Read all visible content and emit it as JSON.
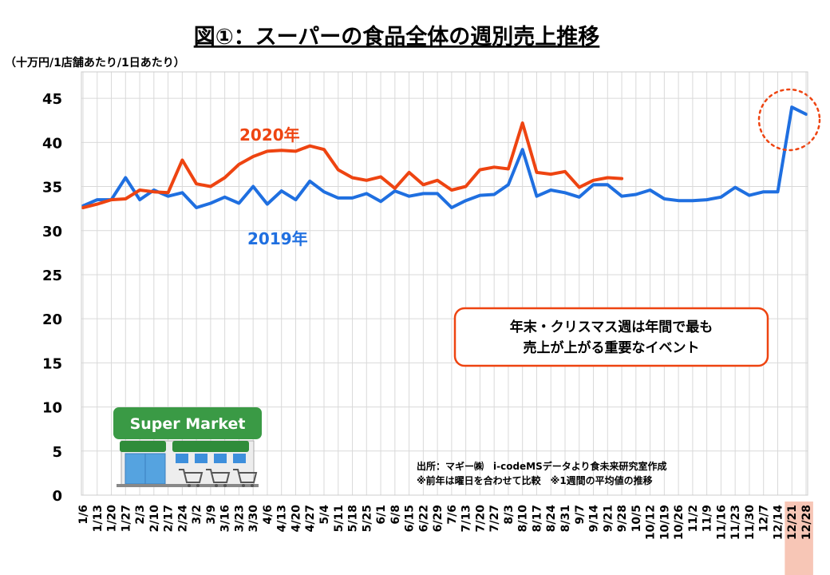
{
  "chart_data": {
    "type": "line",
    "title": "図①：スーパーの食品全体の週別売上推移",
    "ylabel": "（十万円/1店舗あたり/1日あたり）",
    "xlabel": "",
    "ylim": [
      0,
      48
    ],
    "yticks": [
      0,
      5,
      10,
      15,
      20,
      25,
      30,
      35,
      40,
      45
    ],
    "grid": true,
    "categories": [
      "1/6",
      "1/13",
      "1/20",
      "1/27",
      "2/3",
      "2/10",
      "2/17",
      "2/24",
      "3/2",
      "3/9",
      "3/16",
      "3/23",
      "3/30",
      "4/6",
      "4/13",
      "4/20",
      "4/27",
      "5/4",
      "5/11",
      "5/18",
      "5/25",
      "6/1",
      "6/8",
      "6/15",
      "6/22",
      "6/29",
      "7/6",
      "7/13",
      "7/20",
      "7/27",
      "8/3",
      "8/10",
      "8/17",
      "8/24",
      "8/31",
      "9/7",
      "9/14",
      "9/21",
      "9/28",
      "10/5",
      "10/12",
      "10/19",
      "10/26",
      "11/2",
      "11/9",
      "11/16",
      "11/23",
      "11/30",
      "12/7",
      "12/14",
      "12/21",
      "12/28"
    ],
    "highlighted_categories": [
      "12/21",
      "12/28"
    ],
    "series": [
      {
        "name": "2020年",
        "color": "#ee4411",
        "values": [
          32.6,
          33.0,
          33.5,
          33.6,
          34.6,
          34.4,
          34.3,
          38.0,
          35.3,
          35.0,
          36.0,
          37.5,
          38.4,
          39.0,
          39.1,
          39.0,
          39.6,
          39.2,
          36.9,
          36.0,
          35.7,
          36.1,
          34.8,
          36.6,
          35.2,
          35.7,
          34.6,
          35.0,
          36.9,
          37.2,
          37.0,
          42.2,
          36.6,
          36.4,
          36.7,
          34.9,
          35.7,
          36.0,
          35.9,
          null,
          null,
          null,
          null,
          null,
          null,
          null,
          null,
          null,
          null,
          null,
          null,
          null
        ]
      },
      {
        "name": "2019年",
        "color": "#1f6fe0",
        "values": [
          32.8,
          33.5,
          33.5,
          36.0,
          33.5,
          34.6,
          33.9,
          34.3,
          32.6,
          33.1,
          33.8,
          33.1,
          35.0,
          33.0,
          34.5,
          33.5,
          35.6,
          34.4,
          33.7,
          33.7,
          34.2,
          33.3,
          34.5,
          33.9,
          34.2,
          34.2,
          32.6,
          33.4,
          34.0,
          34.1,
          35.2,
          39.2,
          33.9,
          34.6,
          34.3,
          33.8,
          35.2,
          35.2,
          33.9,
          34.1,
          34.6,
          33.6,
          33.4,
          33.4,
          33.5,
          33.8,
          34.9,
          34.0,
          34.4,
          34.4,
          44.0,
          43.2
        ]
      }
    ],
    "annotations": {
      "callout": [
        "年末・クリスマス週は年間で最も",
        "売上が上がる重要なイベント"
      ],
      "source": [
        "出所：マギー㈱　i-codeMSデータより食未来研究室作成",
        "※前年は曜日を合わせて比較　※1週間の平均値の推移"
      ]
    },
    "illustration": {
      "icon": "supermarket-store-icon",
      "sign_text": "Super Market"
    }
  }
}
